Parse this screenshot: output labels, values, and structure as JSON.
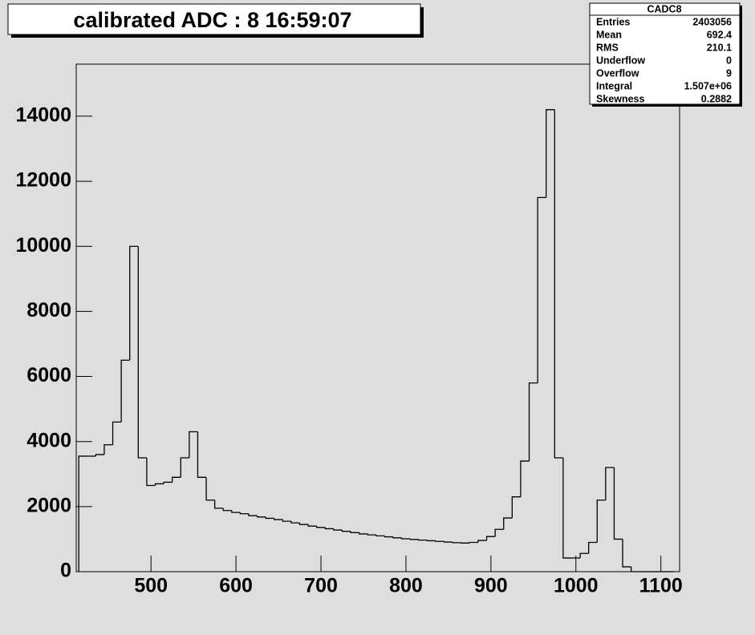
{
  "chart_data": {
    "type": "histogram",
    "title": "calibrated ADC :  8  16:59:07",
    "bins": [
      415,
      425,
      435,
      445,
      455,
      465,
      475,
      485,
      495,
      505,
      515,
      525,
      535,
      545,
      555,
      565,
      575,
      585,
      595,
      605,
      615,
      625,
      635,
      645,
      655,
      665,
      675,
      685,
      695,
      705,
      715,
      725,
      735,
      745,
      755,
      765,
      775,
      785,
      795,
      805,
      815,
      825,
      835,
      845,
      855,
      865,
      875,
      885,
      895,
      905,
      915,
      925,
      935,
      945,
      955,
      965,
      975,
      985,
      995,
      1005,
      1015,
      1025,
      1035,
      1045,
      1055,
      1065,
      1075,
      1085,
      1095,
      1105,
      1115
    ],
    "values": [
      3550,
      3550,
      3600,
      3900,
      4600,
      6500,
      10000,
      3500,
      2650,
      2700,
      2750,
      2900,
      3500,
      4300,
      2900,
      2200,
      1950,
      1880,
      1820,
      1780,
      1720,
      1680,
      1640,
      1600,
      1550,
      1500,
      1450,
      1400,
      1360,
      1320,
      1280,
      1240,
      1200,
      1160,
      1130,
      1100,
      1070,
      1040,
      1010,
      990,
      970,
      950,
      930,
      910,
      890,
      880,
      900,
      960,
      1080,
      1300,
      1650,
      2300,
      3400,
      5800,
      11500,
      14200,
      3500,
      420,
      420,
      560,
      900,
      2200,
      3200,
      1000,
      150,
      0,
      0,
      0,
      0,
      0
    ],
    "color": "#000000",
    "xlim": [
      412,
      1122
    ],
    "ylim": [
      0,
      15600
    ],
    "xticks": [
      500,
      600,
      700,
      800,
      900,
      1000,
      1100
    ],
    "yticks": [
      0,
      2000,
      4000,
      6000,
      8000,
      10000,
      12000,
      14000
    ],
    "stats": {
      "title": "CADC8",
      "rows": [
        [
          "Entries",
          2403056
        ],
        [
          "Mean",
          692.4
        ],
        [
          "RMS",
          210.1
        ],
        [
          "Underflow",
          0
        ],
        [
          "Overflow",
          9
        ],
        [
          "Integral",
          "1.507e+06"
        ],
        [
          "Skewness",
          0.2882
        ]
      ]
    }
  }
}
